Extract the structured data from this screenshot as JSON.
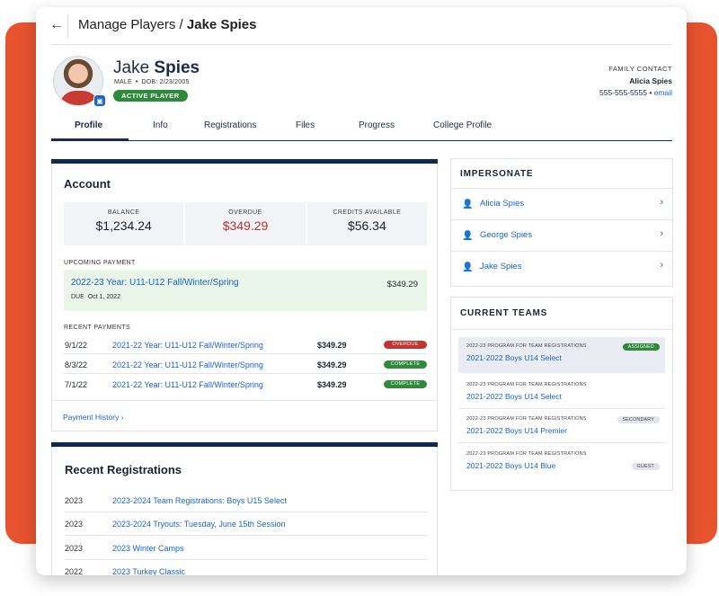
{
  "header": {
    "back_icon": "arrow-left-icon",
    "breadcrumb_parent": "Manage Players / ",
    "breadcrumb_current": "Jake Spies"
  },
  "player": {
    "first_name": "Jake",
    "last_name": "Spies",
    "gender": "MALE",
    "dob": "DOB: 2/23/2005",
    "status": "ACTIVE PLAYER"
  },
  "family_contact": {
    "label": "FAMILY CONTACT",
    "name": "Alicia Spies",
    "phone": "555-555-5555",
    "sep": "•",
    "email_link": "email"
  },
  "tabs": [
    {
      "label": "Profile",
      "active": true
    },
    {
      "label": "Info"
    },
    {
      "label": "Registrations"
    },
    {
      "label": "Files"
    },
    {
      "label": "Progress"
    },
    {
      "label": "College Profile"
    }
  ],
  "account": {
    "title": "Account",
    "stats": [
      {
        "label": "BALANCE",
        "value": "$1,234.24"
      },
      {
        "label": "OVERDUE",
        "value": "$349.29"
      },
      {
        "label": "CREDITS AVAILABLE",
        "value": "$56.34"
      }
    ],
    "upcoming_label": "UPCOMING PAYMENT",
    "upcoming": {
      "title": "2022-23 Year: U11-U12 Fall/Winter/Spring",
      "due_label": "DUE",
      "due_date": "Oct 1, 2022",
      "amount": "$349.29"
    },
    "recent_label": "RECENT PAYMENTS",
    "payments": [
      {
        "date": "9/1/22",
        "desc": "2021-22 Year: U11-U12 Fall/Winter/Spring",
        "amount": "$349.29",
        "status": "OVERDUE"
      },
      {
        "date": "8/3/22",
        "desc": "2021-22 Year: U11-U12 Fall/Winter/Spring",
        "amount": "$349.29",
        "status": "COMPLETE"
      },
      {
        "date": "7/1/22",
        "desc": "2021-22 Year: U11-U12 Fall/Winter/Spring",
        "amount": "$349.29",
        "status": "COMPLETE"
      }
    ],
    "history_link": "Payment History",
    "history_chevron": "›"
  },
  "recent_registrations": {
    "title": "Recent Registrations",
    "rows": [
      {
        "year": "2023",
        "name": "2023-2024 Team Registrations: Boys U15 Select"
      },
      {
        "year": "2023",
        "name": "2023-2024 Tryouts: Tuesday, June 15th Session"
      },
      {
        "year": "2023",
        "name": "2023 Winter Camps"
      },
      {
        "year": "2022",
        "name": "2023 Turkey Classic"
      }
    ]
  },
  "impersonate": {
    "title": "IMPERSONATE",
    "people": [
      {
        "name": "Alicia Spies"
      },
      {
        "name": "George Spies"
      },
      {
        "name": "Jake Spies"
      }
    ],
    "chevron": "›"
  },
  "current_teams": {
    "title": "CURRENT TEAMS",
    "teams": [
      {
        "program": "2022-23 PROGRAM FOR TEAM REGISTRATIONS",
        "name": "2021-2022 Boys U14 Select",
        "badge": "ASSIGNED"
      },
      {
        "program": "2022-23 PROGRAM FOR TEAM REGISTRATIONS",
        "name": "2021-2022 Boys U14 Select",
        "badge": ""
      },
      {
        "program": "2022-23 PROGRAM FOR TEAM REGISTRATIONS",
        "name": "2021-2022 Boys U14 Premier",
        "badge": "SECONDARY"
      },
      {
        "program": "2022-23 PROGRAM FOR TEAM REGISTRATIONS",
        "name": "2021-2022 Boys U14 Blue",
        "badge": "GUEST"
      }
    ]
  },
  "colors": {
    "accent_orange": "#e8532f",
    "navy": "#0f2a52",
    "link_blue": "#1a64c9",
    "success_green": "#2e8a3b",
    "danger_red": "#c0332e"
  }
}
